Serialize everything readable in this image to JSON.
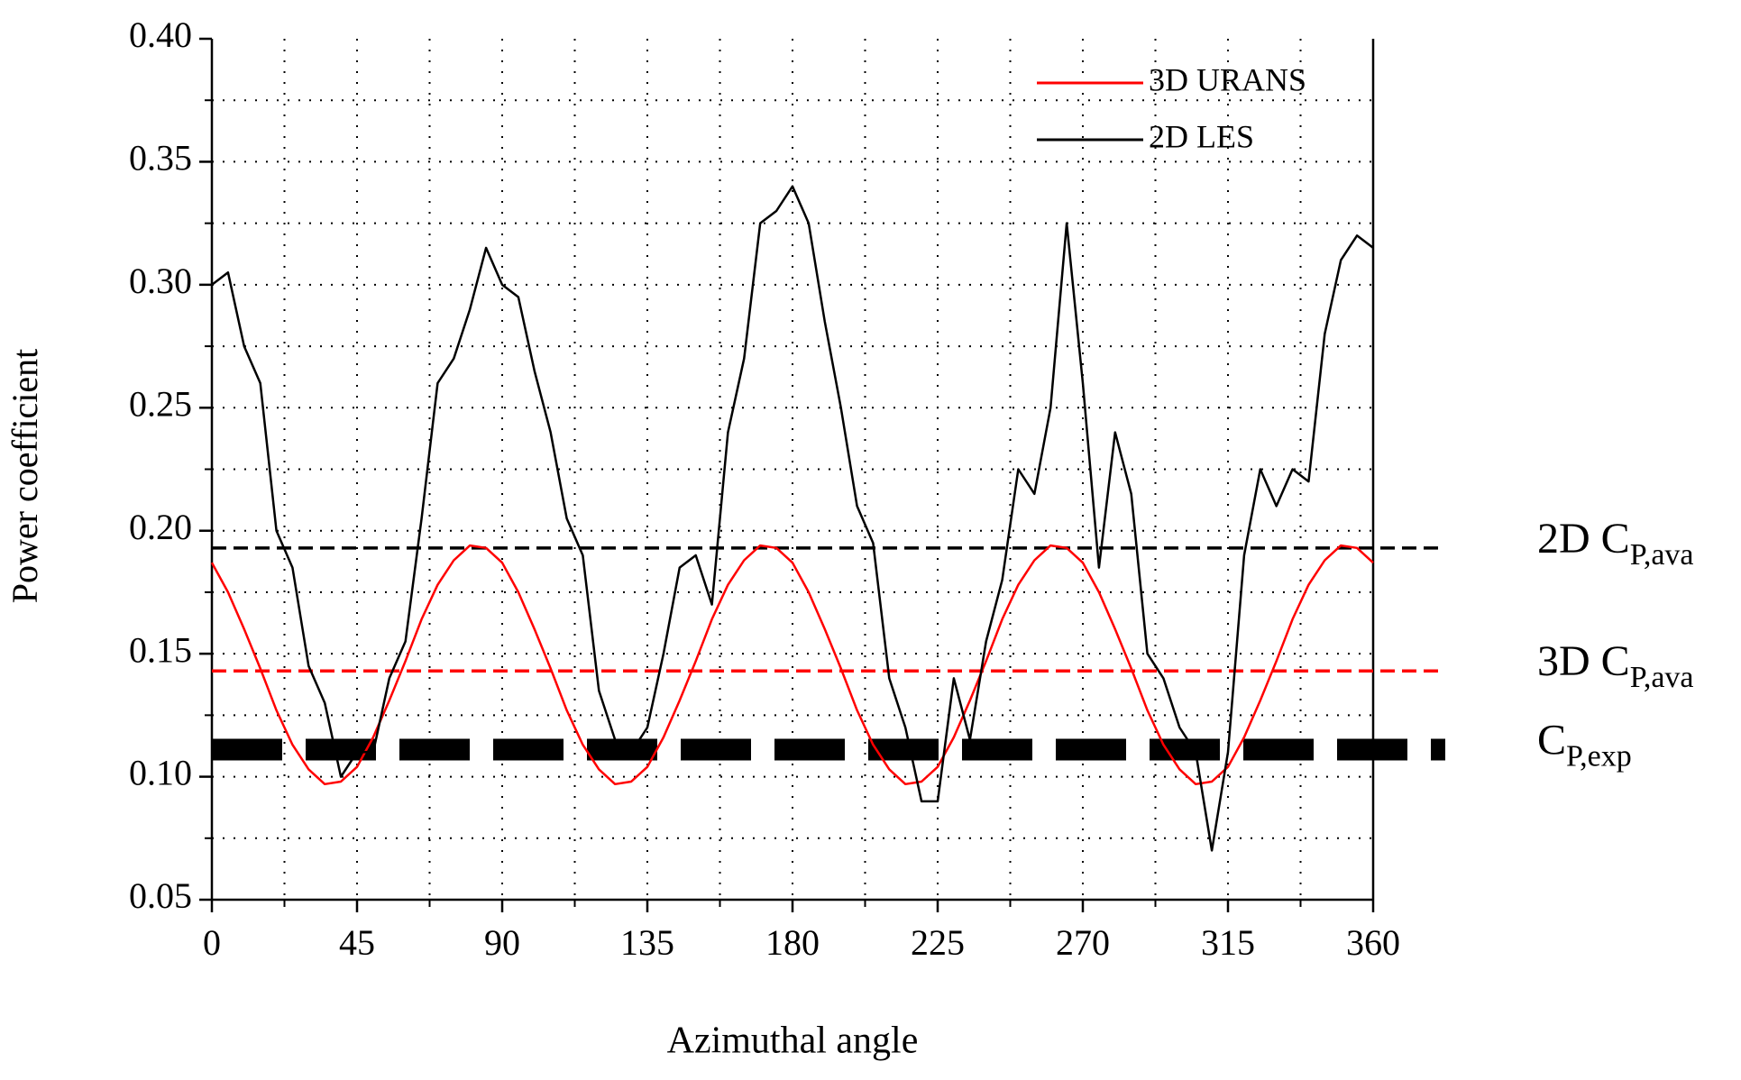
{
  "chart_data": {
    "type": "line",
    "xlabel": "Azimuthal angle",
    "ylabel": "Power coefficient",
    "x": [
      0,
      5,
      10,
      15,
      20,
      25,
      30,
      35,
      40,
      45,
      50,
      55,
      60,
      65,
      70,
      75,
      80,
      85,
      90,
      95,
      100,
      105,
      110,
      115,
      120,
      125,
      130,
      135,
      140,
      145,
      150,
      155,
      160,
      165,
      170,
      175,
      180,
      185,
      190,
      195,
      200,
      205,
      210,
      215,
      220,
      225,
      230,
      235,
      240,
      245,
      250,
      255,
      260,
      265,
      270,
      275,
      280,
      285,
      290,
      295,
      300,
      305,
      310,
      315,
      320,
      325,
      330,
      335,
      340,
      345,
      350,
      355,
      360
    ],
    "series": [
      {
        "name": "3D URANS",
        "color": "#ff0000",
        "values": [
          0.187,
          0.175,
          0.16,
          0.144,
          0.127,
          0.113,
          0.103,
          0.097,
          0.098,
          0.104,
          0.116,
          0.131,
          0.147,
          0.164,
          0.178,
          0.188,
          0.194,
          0.193,
          0.187,
          0.175,
          0.16,
          0.144,
          0.127,
          0.113,
          0.103,
          0.097,
          0.098,
          0.104,
          0.116,
          0.131,
          0.147,
          0.164,
          0.178,
          0.188,
          0.194,
          0.193,
          0.187,
          0.175,
          0.16,
          0.144,
          0.127,
          0.113,
          0.103,
          0.097,
          0.098,
          0.104,
          0.116,
          0.131,
          0.147,
          0.164,
          0.178,
          0.188,
          0.194,
          0.193,
          0.187,
          0.175,
          0.16,
          0.144,
          0.127,
          0.113,
          0.103,
          0.097,
          0.098,
          0.104,
          0.116,
          0.131,
          0.147,
          0.164,
          0.178,
          0.188,
          0.194,
          0.193,
          0.187
        ]
      },
      {
        "name": "2D LES",
        "color": "#000000",
        "values": [
          0.3,
          0.305,
          0.275,
          0.26,
          0.2,
          0.185,
          0.145,
          0.13,
          0.1,
          0.11,
          0.11,
          0.14,
          0.155,
          0.205,
          0.26,
          0.27,
          0.29,
          0.315,
          0.3,
          0.295,
          0.265,
          0.24,
          0.205,
          0.19,
          0.135,
          0.115,
          0.11,
          0.12,
          0.15,
          0.185,
          0.19,
          0.17,
          0.24,
          0.27,
          0.325,
          0.33,
          0.34,
          0.325,
          0.285,
          0.25,
          0.21,
          0.195,
          0.14,
          0.12,
          0.09,
          0.09,
          0.14,
          0.115,
          0.155,
          0.18,
          0.225,
          0.215,
          0.25,
          0.325,
          0.26,
          0.185,
          0.24,
          0.215,
          0.15,
          0.14,
          0.12,
          0.11,
          0.07,
          0.11,
          0.19,
          0.225,
          0.21,
          0.225,
          0.22,
          0.28,
          0.31,
          0.32,
          0.315
        ]
      }
    ],
    "reference_lines": [
      {
        "value": 0.193,
        "label": "2D C",
        "label_sub": "P,ava",
        "color": "#000000",
        "style": "dashed"
      },
      {
        "value": 0.143,
        "label": "3D C",
        "label_sub": "P,ava",
        "color": "#ff0000",
        "style": "dashed"
      },
      {
        "value": 0.111,
        "label": "C",
        "label_sub": "P,exp",
        "color": "#000000",
        "style": "thick-dashed"
      }
    ],
    "xlim": [
      0,
      360
    ],
    "xticks": [
      0,
      45,
      90,
      135,
      180,
      225,
      270,
      315,
      360
    ],
    "xminor": [
      22.5,
      67.5,
      112.5,
      157.5,
      202.5,
      247.5,
      292.5,
      337.5
    ],
    "ylim": [
      0.05,
      0.4
    ],
    "yticks": [
      0.05,
      {
        "value": 0.1,
        "label": "0.10"
      },
      0.15,
      {
        "value": 0.2,
        "label": "0.20"
      },
      0.25,
      {
        "value": 0.3,
        "label": "0.30"
      },
      0.35,
      {
        "value": 0.4,
        "label": "0.40"
      }
    ],
    "yminor": [
      0.075,
      0.125,
      0.175,
      0.225,
      0.275,
      0.325,
      0.375
    ],
    "grid": true,
    "legend": "top-right"
  }
}
